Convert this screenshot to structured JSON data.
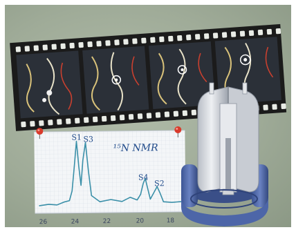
{
  "nmr": {
    "title": "¹⁵N NMR",
    "peaks": [
      {
        "label": "S1",
        "ppm": 23.9
      },
      {
        "label": "S3",
        "ppm": 23.0
      },
      {
        "label": "S4",
        "ppm": 20.5
      },
      {
        "label": "S2",
        "ppm": 19.6
      }
    ],
    "axis_ticks": [
      "26",
      "24",
      "22",
      "20",
      "18"
    ],
    "line_color": "#3a8fa8"
  },
  "film": {
    "frames": 4,
    "base_color": "#1b1b1b"
  },
  "colors": {
    "background": "#a3ae9b",
    "pin": "#d93a2b",
    "paper": "#f4f6f8",
    "rotor_housing": "#4d66a8",
    "rotor_body": "#d8dbe0"
  }
}
